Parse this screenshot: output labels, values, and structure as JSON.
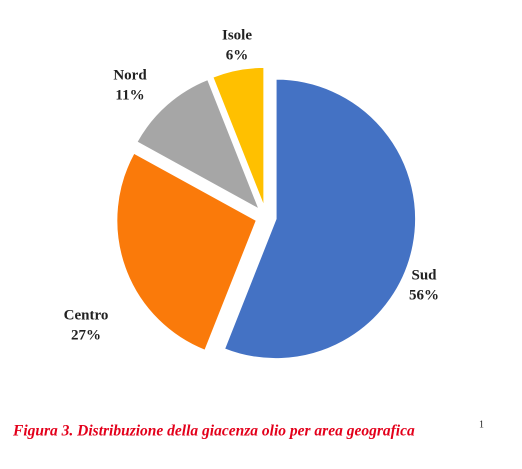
{
  "chart_data": {
    "type": "pie",
    "categories": [
      "Sud",
      "Centro",
      "Nord",
      "Isole"
    ],
    "values": [
      56,
      27,
      11,
      6
    ],
    "value_labels": [
      "56%",
      "27%",
      "11%",
      "6%"
    ],
    "colors": [
      "#4472c4",
      "#fa7a0a",
      "#a6a6a6",
      "#ffc000"
    ],
    "caption": "Figura 3. Distribuzione della giacenza olio per area geografica",
    "caption_footnote": "1"
  }
}
